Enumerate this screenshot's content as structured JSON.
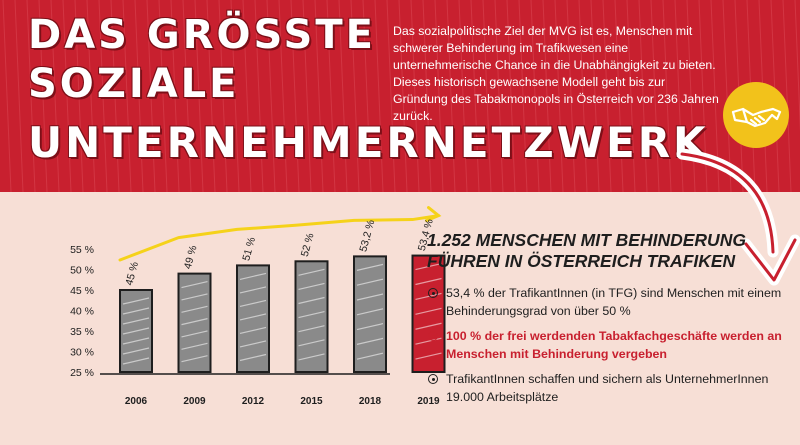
{
  "header": {
    "title_lines": [
      "DAS GRÖSSTE",
      "SOZIALE",
      "UNTERNEHMERNETZWERK"
    ],
    "intro": "Das sozialpolitische Ziel der MVG ist es, Menschen mit schwerer Behinderung im Trafikwesen eine unternehmerische Chance in die Unabhängigkeit zu bieten. Dieses historisch gewachsene Modell geht bis zur Gründung des Tabakmonopols in Österreich vor 236 Jahren zurück."
  },
  "badge": {
    "icon": "handshake-icon"
  },
  "subhead": {
    "line1": "1.252 MENSCHEN MIT BEHINDERUNG",
    "line2": "FÜHREN IN ÖSTERREICH TRAFIKEN"
  },
  "facts": [
    {
      "text": "53,4 % der TrafikantInnen (in TFG) sind Menschen mit einem Behinderungsgrad von über 50 %",
      "highlight": false
    },
    {
      "text": "100 % der frei werdenden Tabakfachgeschäfte werden an Menschen mit Behinderung vergeben",
      "highlight": true
    },
    {
      "text": "TrafikantInnen schaffen und sichern als UnternehmerInnen 19.000 Arbeitsplätze",
      "highlight": false
    }
  ],
  "colors": {
    "red": "#c8202f",
    "gray": "#8a8a8a",
    "arrow_yellow": "#f5d21a",
    "background": "#f7dfd6"
  },
  "chart_data": {
    "type": "bar",
    "categories": [
      "2006",
      "2009",
      "2012",
      "2015",
      "2018",
      "2019"
    ],
    "values": [
      45,
      49,
      51,
      52,
      53.2,
      53.4
    ],
    "value_labels": [
      "45 %",
      "49 %",
      "51 %",
      "52 %",
      "53,2 %",
      "53,4 %"
    ],
    "highlight_index": 5,
    "yticks": [
      "25 %",
      "30 %",
      "35 %",
      "40 %",
      "45 %",
      "50 %",
      "55 %"
    ],
    "ylim": [
      25,
      57
    ],
    "trend_arrow": true,
    "grid": false,
    "title": "",
    "xlabel": "",
    "ylabel": ""
  }
}
